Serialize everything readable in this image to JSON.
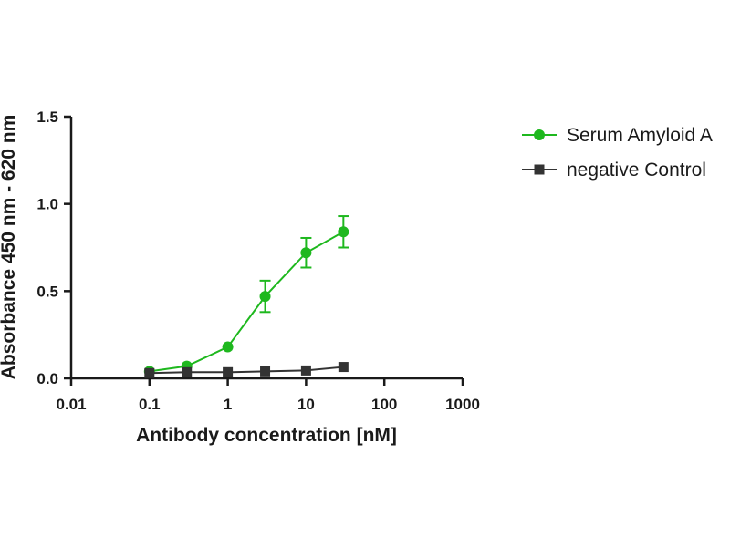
{
  "chart_data": {
    "type": "line",
    "xlabel": "Antibody concentration [nM]",
    "ylabel": "Absorbance 450 nm - 620 nm",
    "x_scale": "log",
    "xlim": [
      0.01,
      1000
    ],
    "ylim": [
      0,
      1.5
    ],
    "x_ticks": [
      0.01,
      0.1,
      1,
      10,
      100,
      1000
    ],
    "x_tick_labels": [
      "0.01",
      "0.1",
      "1",
      "10",
      "100",
      "1000"
    ],
    "y_ticks": [
      0,
      0.5,
      1.0,
      1.5
    ],
    "y_tick_labels": [
      "0.0",
      "0.5",
      "1.0",
      "1.5"
    ],
    "grid": false,
    "legend_position": "right",
    "series": [
      {
        "name": "Serum Amyloid A",
        "color": "#1eb81e",
        "marker": "circle",
        "x": [
          0.1,
          0.3,
          1,
          3,
          10,
          30
        ],
        "y": [
          0.04,
          0.07,
          0.18,
          0.47,
          0.72,
          0.84
        ],
        "error": [
          0.005,
          0.005,
          0.01,
          0.09,
          0.085,
          0.09
        ]
      },
      {
        "name": "negative Control",
        "color": "#333333",
        "marker": "square",
        "x": [
          0.1,
          0.3,
          1,
          3,
          10,
          30
        ],
        "y": [
          0.03,
          0.035,
          0.035,
          0.04,
          0.045,
          0.065
        ],
        "error": [
          0,
          0,
          0,
          0,
          0,
          0
        ]
      }
    ]
  }
}
